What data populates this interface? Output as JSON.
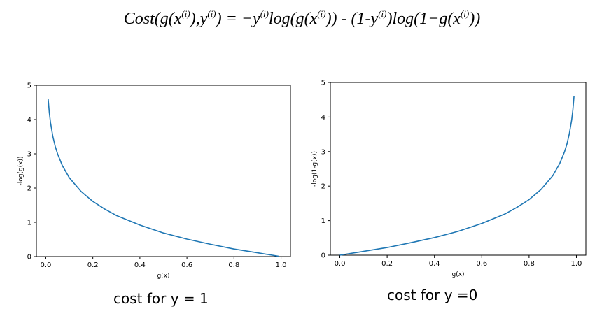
{
  "formula": {
    "cost": "Cost(g(x",
    "sup_i": "(i)",
    "mid": "),y",
    "eq": ")  =  −y",
    "log1": "log(g(x",
    "minus": "))  -  (1-y",
    "log2": ")log(1−g(x",
    "end": "))"
  },
  "captions": {
    "left": "cost for y = 1",
    "right": "cost for y =0"
  },
  "chart_data": [
    {
      "type": "line",
      "xlabel": "g(x)",
      "ylabel": "-log(g(x))",
      "xlim": [
        -0.04,
        1.04
      ],
      "ylim": [
        0,
        5
      ],
      "xticks": [
        "0.0",
        "0.2",
        "0.4",
        "0.6",
        "0.8",
        "1.0"
      ],
      "yticks": [
        "0",
        "1",
        "2",
        "3",
        "4",
        "5"
      ],
      "series": [
        {
          "color": "#1f77b4",
          "x": [
            0.01,
            0.015,
            0.02,
            0.03,
            0.04,
            0.05,
            0.07,
            0.1,
            0.15,
            0.2,
            0.25,
            0.3,
            0.4,
            0.5,
            0.6,
            0.7,
            0.8,
            0.9,
            0.99
          ],
          "y": [
            4.61,
            4.2,
            3.91,
            3.51,
            3.22,
            3.0,
            2.66,
            2.3,
            1.9,
            1.61,
            1.39,
            1.2,
            0.92,
            0.69,
            0.51,
            0.36,
            0.22,
            0.11,
            0.01
          ]
        }
      ]
    },
    {
      "type": "line",
      "xlabel": "g(x)",
      "ylabel": "-log(1-g(x))",
      "xlim": [
        -0.04,
        1.04
      ],
      "ylim": [
        0,
        5
      ],
      "xticks": [
        "0.0",
        "0.2",
        "0.4",
        "0.6",
        "0.8",
        "1.0"
      ],
      "yticks": [
        "0",
        "1",
        "2",
        "3",
        "4",
        "5"
      ],
      "series": [
        {
          "color": "#1f77b4",
          "x": [
            0.0,
            0.1,
            0.2,
            0.3,
            0.4,
            0.5,
            0.6,
            0.7,
            0.75,
            0.8,
            0.85,
            0.9,
            0.93,
            0.95,
            0.96,
            0.97,
            0.98,
            0.985,
            0.99
          ],
          "y": [
            0.0,
            0.11,
            0.22,
            0.36,
            0.51,
            0.69,
            0.92,
            1.2,
            1.39,
            1.61,
            1.9,
            2.3,
            2.66,
            3.0,
            3.22,
            3.51,
            3.91,
            4.2,
            4.61
          ]
        }
      ]
    }
  ]
}
